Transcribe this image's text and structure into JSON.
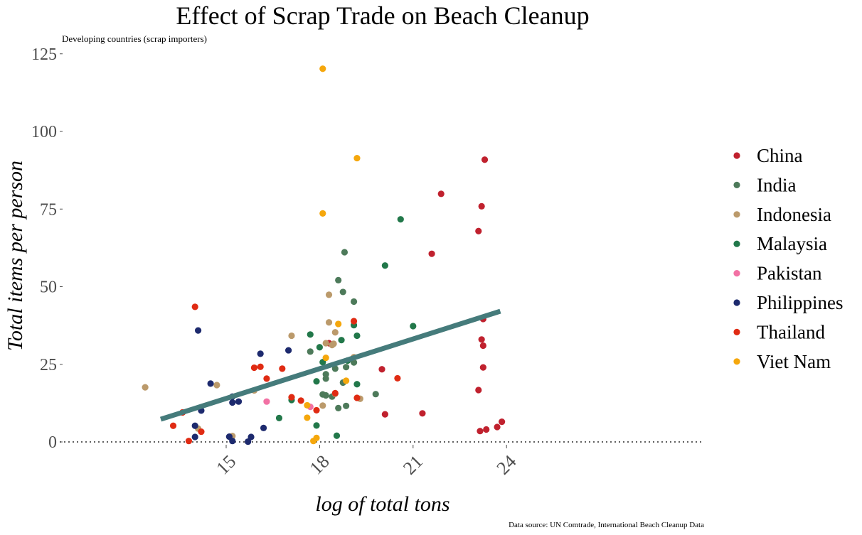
{
  "chart_data": {
    "type": "scatter",
    "title": "Effect of Scrap Trade on Beach Cleanup",
    "subtitle": "Developing countries (scrap importers)",
    "xlabel": "log of total tons",
    "ylabel": "Total items per person",
    "caption": "Data source: UN Comtrade, International Beach Cleanup Data",
    "xlim": [
      12.3,
      24.3
    ],
    "ylim": [
      0,
      125
    ],
    "xticks": [
      15,
      18,
      21,
      24
    ],
    "yticks": [
      0,
      25,
      50,
      75,
      100,
      125
    ],
    "grid": false,
    "legend": "right",
    "trend_line": {
      "x": [
        12.9,
        23.8
      ],
      "y": [
        7.3,
        42.1
      ],
      "color": "#457b7b"
    },
    "zero_line": {
      "y": 0,
      "style": "dotted"
    },
    "series": [
      {
        "name": "China",
        "color": "#c0212e",
        "points": [
          [
            18.3,
            31.8
          ],
          [
            20.0,
            23.4
          ],
          [
            20.1,
            8.9
          ],
          [
            21.3,
            9.2
          ],
          [
            21.6,
            60.6
          ],
          [
            21.9,
            79.9
          ],
          [
            23.1,
            67.9
          ],
          [
            23.2,
            75.9
          ],
          [
            23.3,
            90.9
          ],
          [
            23.25,
            39.6
          ],
          [
            23.2,
            33.0
          ],
          [
            23.25,
            31.0
          ],
          [
            23.25,
            24.0
          ],
          [
            23.1,
            16.7
          ],
          [
            23.15,
            3.5
          ],
          [
            23.35,
            4.0
          ],
          [
            23.7,
            4.8
          ],
          [
            23.85,
            6.5
          ]
        ]
      },
      {
        "name": "India",
        "color": "#4d7a5a",
        "points": [
          [
            17.7,
            29.1
          ],
          [
            18.1,
            15.3
          ],
          [
            18.2,
            21.8
          ],
          [
            18.2,
            20.4
          ],
          [
            18.2,
            15.0
          ],
          [
            18.4,
            14.6
          ],
          [
            18.5,
            23.6
          ],
          [
            18.6,
            52.1
          ],
          [
            18.6,
            10.9
          ],
          [
            18.75,
            48.3
          ],
          [
            18.75,
            19.1
          ],
          [
            18.8,
            61.1
          ],
          [
            18.85,
            24.1
          ],
          [
            18.85,
            11.6
          ],
          [
            19.1,
            45.2
          ],
          [
            19.1,
            25.6
          ],
          [
            19.8,
            15.4
          ]
        ]
      },
      {
        "name": "Indonesia",
        "color": "#bb9a6b",
        "points": [
          [
            12.4,
            17.6
          ],
          [
            14.1,
            4.3
          ],
          [
            14.7,
            18.3
          ],
          [
            15.2,
            1.9
          ],
          [
            15.9,
            16.6
          ],
          [
            17.1,
            34.2
          ],
          [
            18.2,
            31.8
          ],
          [
            18.3,
            47.4
          ],
          [
            18.3,
            38.5
          ],
          [
            18.4,
            31.2
          ],
          [
            18.45,
            31.6
          ],
          [
            18.5,
            35.3
          ],
          [
            18.5,
            15.5
          ],
          [
            18.1,
            11.7
          ],
          [
            19.1,
            27.3
          ],
          [
            19.3,
            13.9
          ]
        ]
      },
      {
        "name": "Malaysia",
        "color": "#22784a",
        "points": [
          [
            16.7,
            7.7
          ],
          [
            17.1,
            13.5
          ],
          [
            17.7,
            34.6
          ],
          [
            17.9,
            19.5
          ],
          [
            17.9,
            5.3
          ],
          [
            18.0,
            30.5
          ],
          [
            18.1,
            25.7
          ],
          [
            18.7,
            32.8
          ],
          [
            18.9,
            26.2
          ],
          [
            19.1,
            37.6
          ],
          [
            19.2,
            34.2
          ],
          [
            19.2,
            18.6
          ],
          [
            18.55,
            2.0
          ],
          [
            20.1,
            56.8
          ],
          [
            20.6,
            71.7
          ],
          [
            21.0,
            37.3
          ]
        ]
      },
      {
        "name": "Pakistan",
        "color": "#f271a4",
        "points": [
          [
            16.3,
            13.0
          ],
          [
            17.7,
            11.3
          ]
        ]
      },
      {
        "name": "Philippines",
        "color": "#1d2a6e",
        "points": [
          [
            14.0,
            5.2
          ],
          [
            14.0,
            1.6
          ],
          [
            14.1,
            35.9
          ],
          [
            14.2,
            10.1
          ],
          [
            14.5,
            18.8
          ],
          [
            15.1,
            1.7
          ],
          [
            15.2,
            14.6
          ],
          [
            15.2,
            12.7
          ],
          [
            15.2,
            0.3
          ],
          [
            15.4,
            13.0
          ],
          [
            15.7,
            0.1
          ],
          [
            15.8,
            1.6
          ],
          [
            16.1,
            28.4
          ],
          [
            16.2,
            4.5
          ],
          [
            17.0,
            29.5
          ]
        ]
      },
      {
        "name": "Thailand",
        "color": "#e02b13",
        "points": [
          [
            13.3,
            5.2
          ],
          [
            13.6,
            9.5
          ],
          [
            13.8,
            0.3
          ],
          [
            14.0,
            43.5
          ],
          [
            14.2,
            3.3
          ],
          [
            15.9,
            23.9
          ],
          [
            16.1,
            24.2
          ],
          [
            16.3,
            20.4
          ],
          [
            16.8,
            23.6
          ],
          [
            17.1,
            14.4
          ],
          [
            17.4,
            13.3
          ],
          [
            17.9,
            10.2
          ],
          [
            18.5,
            15.7
          ],
          [
            19.1,
            38.9
          ],
          [
            19.2,
            14.2
          ],
          [
            20.5,
            20.5
          ]
        ]
      },
      {
        "name": "Viet Nam",
        "color": "#f5a70c",
        "points": [
          [
            18.1,
            120.2
          ],
          [
            18.1,
            73.6
          ],
          [
            18.2,
            27.1
          ],
          [
            18.6,
            38.0
          ],
          [
            18.85,
            19.7
          ],
          [
            19.2,
            91.4
          ],
          [
            17.6,
            11.8
          ],
          [
            17.6,
            7.8
          ],
          [
            17.8,
            0.3
          ],
          [
            17.9,
            1.3
          ]
        ]
      }
    ]
  }
}
